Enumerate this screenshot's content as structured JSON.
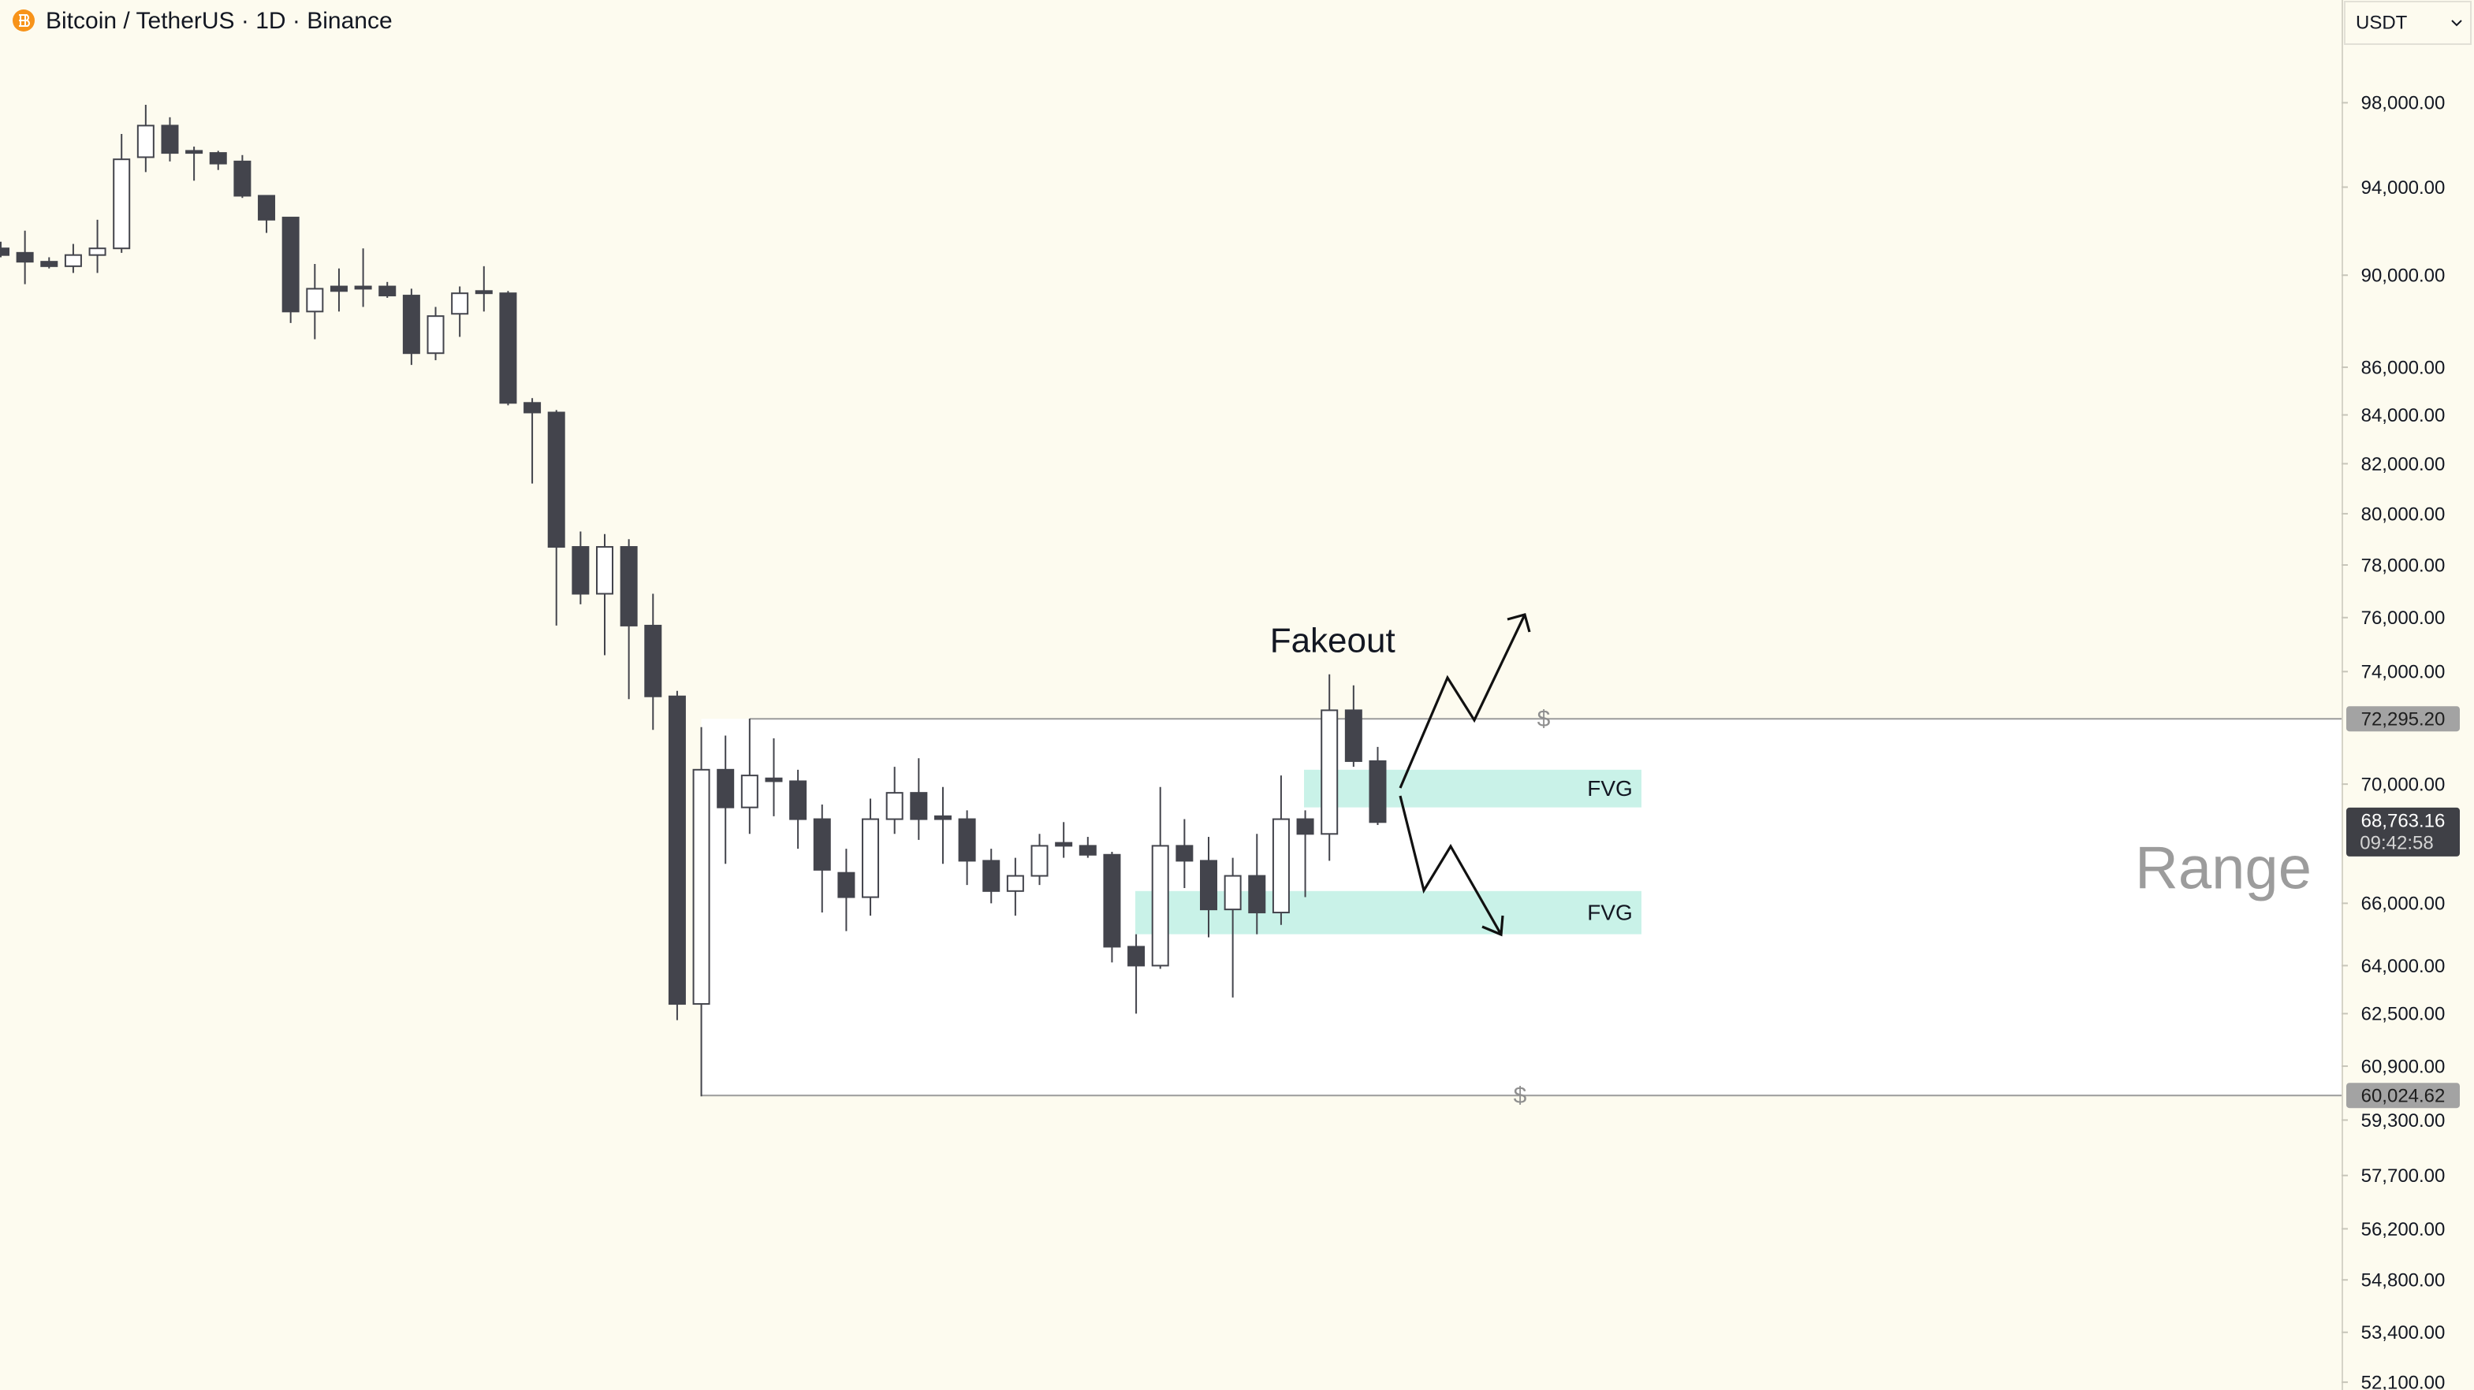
{
  "header": {
    "symbol": "Bitcoin / TetherUS · 1D · Binance",
    "currency": "USDT"
  },
  "chart_data": {
    "type": "candlestick",
    "open": [
      91200,
      91000,
      90600,
      90400,
      90900,
      91200,
      95400,
      96900,
      95700,
      95600,
      95200,
      93600,
      92600,
      88400,
      89500,
      89500,
      89500,
      89100,
      86600,
      88300,
      89300,
      89200,
      84500,
      84100,
      78700,
      76900,
      78700,
      75700,
      73100,
      62800,
      70500,
      69200,
      70200,
      70100,
      68800,
      67000,
      66200,
      68800,
      69700,
      68900,
      68800,
      67400,
      66400,
      66900,
      68000,
      67900,
      67600,
      64600,
      64000,
      67900,
      67400,
      65800,
      66900,
      65700,
      68800,
      68300,
      72600,
      70800
    ],
    "high": [
      91500,
      92000,
      90800,
      91400,
      92500,
      96500,
      97900,
      97300,
      95900,
      95700,
      95500,
      93600,
      92600,
      90500,
      90300,
      91200,
      89700,
      89400,
      88600,
      89500,
      90400,
      89300,
      84700,
      84200,
      79300,
      79200,
      79000,
      76900,
      73300,
      72000,
      71700,
      72300,
      71600,
      70500,
      69300,
      67800,
      69500,
      70600,
      70900,
      69900,
      69100,
      67800,
      67500,
      68300,
      68700,
      68200,
      67700,
      65000,
      69900,
      68800,
      68200,
      67500,
      68300,
      70300,
      69100,
      73900,
      73500,
      71300
    ],
    "low": [
      90800,
      89600,
      90300,
      90100,
      90100,
      91000,
      94700,
      95200,
      94300,
      94800,
      93500,
      91900,
      87900,
      87200,
      88400,
      88600,
      89000,
      86100,
      86300,
      87300,
      88400,
      84400,
      81200,
      75700,
      76500,
      74600,
      73000,
      71900,
      62300,
      60000,
      67300,
      68300,
      68900,
      67800,
      65700,
      65100,
      65600,
      68300,
      68100,
      67300,
      66600,
      66000,
      65600,
      66600,
      67500,
      67500,
      64100,
      62500,
      63900,
      66500,
      64900,
      63000,
      65000,
      65300,
      66200,
      67400,
      70600,
      68600
    ],
    "close": [
      90900,
      90600,
      90400,
      90900,
      91200,
      95300,
      96900,
      95600,
      95600,
      95100,
      93600,
      92500,
      88400,
      89400,
      89300,
      89400,
      89100,
      86600,
      88200,
      89200,
      89200,
      84500,
      84100,
      78700,
      76900,
      78700,
      75700,
      73100,
      62800,
      70500,
      69200,
      70300,
      70100,
      68800,
      67100,
      66200,
      68800,
      69700,
      68800,
      68800,
      67400,
      66400,
      66900,
      67900,
      67900,
      67600,
      64600,
      64000,
      67900,
      67400,
      65800,
      66900,
      65700,
      68800,
      68300,
      72600,
      70800,
      68700
    ],
    "up_color": "#ffffff",
    "down_color": "#43444c",
    "log_scale": true,
    "ylim": [
      51900,
      103100
    ],
    "yticks": [
      {
        "value": 98000,
        "label": "98,000.00"
      },
      {
        "value": 94000,
        "label": "94,000.00"
      },
      {
        "value": 90000,
        "label": "90,000.00"
      },
      {
        "value": 86000,
        "label": "86,000.00"
      },
      {
        "value": 84000,
        "label": "84,000.00"
      },
      {
        "value": 82000,
        "label": "82,000.00"
      },
      {
        "value": 80000,
        "label": "80,000.00"
      },
      {
        "value": 78000,
        "label": "78,000.00"
      },
      {
        "value": 76000,
        "label": "76,000.00"
      },
      {
        "value": 74000,
        "label": "74,000.00"
      },
      {
        "value": 70000,
        "label": "70,000.00"
      },
      {
        "value": 66000,
        "label": "66,000.00"
      },
      {
        "value": 64000,
        "label": "64,000.00"
      },
      {
        "value": 62500,
        "label": "62,500.00"
      },
      {
        "value": 60900,
        "label": "60,900.00"
      },
      {
        "value": 59300,
        "label": "59,300.00"
      },
      {
        "value": 57700,
        "label": "57,700.00"
      },
      {
        "value": 56200,
        "label": "56,200.00"
      },
      {
        "value": 54800,
        "label": "54,800.00"
      },
      {
        "value": 53400,
        "label": "53,400.00"
      },
      {
        "value": 52100,
        "label": "52,100.00"
      }
    ],
    "levels": [
      {
        "value": 72295.2,
        "label": "72,295.20",
        "marker": "$"
      },
      {
        "value": 60024.62,
        "label": "60,024.62",
        "marker": "$"
      }
    ],
    "last_price": {
      "value": 68763.16,
      "label": "68,763.16",
      "countdown": "09:42:58"
    },
    "zones": [
      {
        "label": "FVG",
        "top": 70500,
        "bottom": 69200,
        "color": "#c9f2e8"
      },
      {
        "label": "FVG",
        "top": 66400,
        "bottom": 65000,
        "color": "#c9f2e8"
      }
    ],
    "annotations": {
      "fakeout": "Fakeout",
      "range": "Range"
    }
  }
}
